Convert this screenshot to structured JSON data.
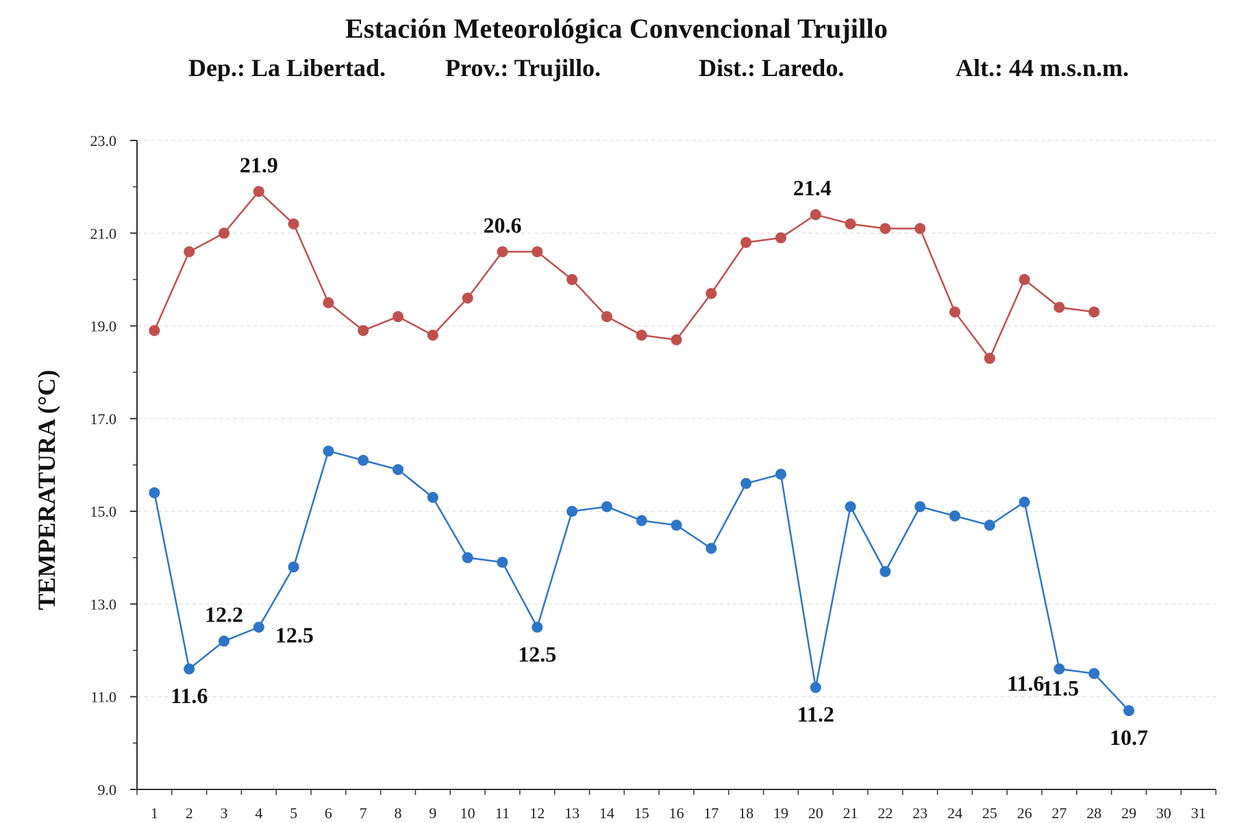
{
  "title": "Estación Meteorológica Convencional Trujillo",
  "subtitle": {
    "dep": "Dep.: La Libertad.",
    "prov": "Prov.: Trujillo.",
    "dist": "Dist.: Laredo.",
    "alt": "Alt.: 44 m.s.n.m."
  },
  "chart_data": {
    "type": "line",
    "title": "Estación Meteorológica Convencional Trujillo",
    "xlabel": "",
    "ylabel": "TEMPERATURA (°C)",
    "ylim": [
      9.0,
      23.0
    ],
    "yticks": [
      "9.0",
      "11.0",
      "13.0",
      "15.0",
      "17.0",
      "19.0",
      "21.0",
      "23.0"
    ],
    "x": [
      1,
      2,
      3,
      4,
      5,
      6,
      7,
      8,
      9,
      10,
      11,
      12,
      13,
      14,
      15,
      16,
      17,
      18,
      19,
      20,
      21,
      22,
      23,
      24,
      25,
      26,
      27,
      28,
      29,
      30,
      31
    ],
    "grid": true,
    "legend": "none",
    "series": [
      {
        "color": "#c0504d",
        "values": [
          18.9,
          20.6,
          21.0,
          21.9,
          21.2,
          19.5,
          18.9,
          19.2,
          18.8,
          19.6,
          20.6,
          20.6,
          20.0,
          19.2,
          18.8,
          18.7,
          19.7,
          20.8,
          20.9,
          21.4,
          21.2,
          21.1,
          21.1,
          19.3,
          18.3,
          20.0,
          19.4,
          19.3,
          null,
          null,
          null
        ],
        "labels": [
          {
            "day": 4,
            "text": "21.9",
            "pos": "above"
          },
          {
            "day": 11,
            "text": "20.6",
            "pos": "above"
          },
          {
            "day": 20,
            "text": "21.4",
            "pos": "above-left"
          }
        ]
      },
      {
        "color": "#2e75c8",
        "values": [
          15.4,
          11.6,
          12.2,
          12.5,
          13.8,
          16.3,
          16.1,
          15.9,
          15.3,
          14.0,
          13.9,
          12.5,
          15.0,
          15.1,
          14.8,
          14.7,
          14.2,
          15.6,
          15.8,
          11.2,
          15.1,
          13.7,
          15.1,
          14.9,
          14.7,
          15.2,
          11.6,
          11.5,
          10.7,
          null,
          null
        ],
        "labels": [
          {
            "day": 2,
            "text": "11.6",
            "pos": "below"
          },
          {
            "day": 3,
            "text": "12.2",
            "pos": "above"
          },
          {
            "day": 4,
            "text": "12.5",
            "pos": "below-right"
          },
          {
            "day": 12,
            "text": "12.5",
            "pos": "below"
          },
          {
            "day": 20,
            "text": "11.2",
            "pos": "below"
          },
          {
            "day": 27,
            "text": "11.6",
            "pos": "below-left"
          },
          {
            "day": 28,
            "text": "11.5",
            "pos": "below-left"
          },
          {
            "day": 29,
            "text": "10.7",
            "pos": "below"
          }
        ]
      }
    ]
  }
}
